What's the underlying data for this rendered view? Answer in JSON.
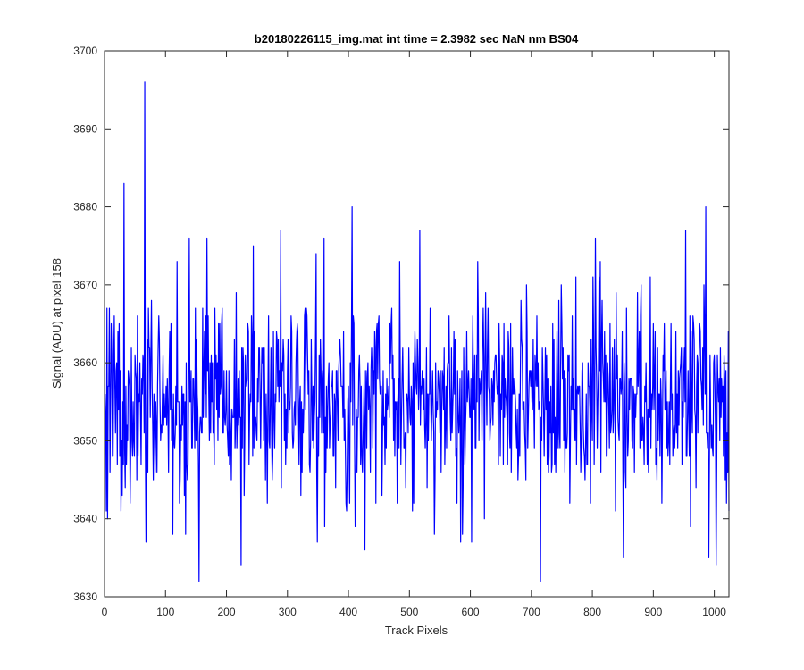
{
  "chart_data": {
    "type": "line",
    "title": "b20180226115_img.mat int time = 2.3982 sec  NaN nm BS04",
    "xlabel": "Track Pixels",
    "ylabel": "Signal (ADU) at pixel 158",
    "xlim": [
      0,
      1024
    ],
    "ylim": [
      3630,
      3700
    ],
    "xticks": [
      0,
      100,
      200,
      300,
      400,
      500,
      600,
      700,
      800,
      900,
      1000
    ],
    "yticks": [
      3630,
      3640,
      3650,
      3660,
      3670,
      3680,
      3690,
      3700
    ],
    "xtick_labels": [
      "0",
      "100",
      "200",
      "300",
      "400",
      "500",
      "600",
      "700",
      "800",
      "900",
      "1000"
    ],
    "ytick_labels": [
      "3630",
      "3640",
      "3650",
      "3660",
      "3670",
      "3680",
      "3690",
      "3700"
    ],
    "grid": false,
    "legend": "none",
    "series": [
      {
        "color": "#0000ff",
        "x_start": 1,
        "x_step": 1,
        "peaks": [
          {
            "x": 3,
            "y": 3641
          },
          {
            "x": 8,
            "y": 3667
          },
          {
            "x": 32,
            "y": 3683
          },
          {
            "x": 66,
            "y": 3696
          },
          {
            "x": 68,
            "y": 3637
          },
          {
            "x": 119,
            "y": 3673
          },
          {
            "x": 139,
            "y": 3676
          },
          {
            "x": 155,
            "y": 3632
          },
          {
            "x": 168,
            "y": 3676
          },
          {
            "x": 224,
            "y": 3634
          },
          {
            "x": 289,
            "y": 3677
          },
          {
            "x": 349,
            "y": 3637
          },
          {
            "x": 360,
            "y": 3676
          },
          {
            "x": 406,
            "y": 3680
          },
          {
            "x": 427,
            "y": 3636
          },
          {
            "x": 517,
            "y": 3677
          },
          {
            "x": 584,
            "y": 3637
          },
          {
            "x": 602,
            "y": 3637
          },
          {
            "x": 715,
            "y": 3632
          },
          {
            "x": 805,
            "y": 3676
          },
          {
            "x": 851,
            "y": 3635
          },
          {
            "x": 953,
            "y": 3677
          },
          {
            "x": 986,
            "y": 3680
          },
          {
            "x": 991,
            "y": 3635
          },
          {
            "x": 1003,
            "y": 3634
          },
          {
            "x": 1024,
            "y": 3641
          }
        ],
        "n_points": 1024,
        "mean": 3655,
        "spread": 6.5
      }
    ]
  }
}
